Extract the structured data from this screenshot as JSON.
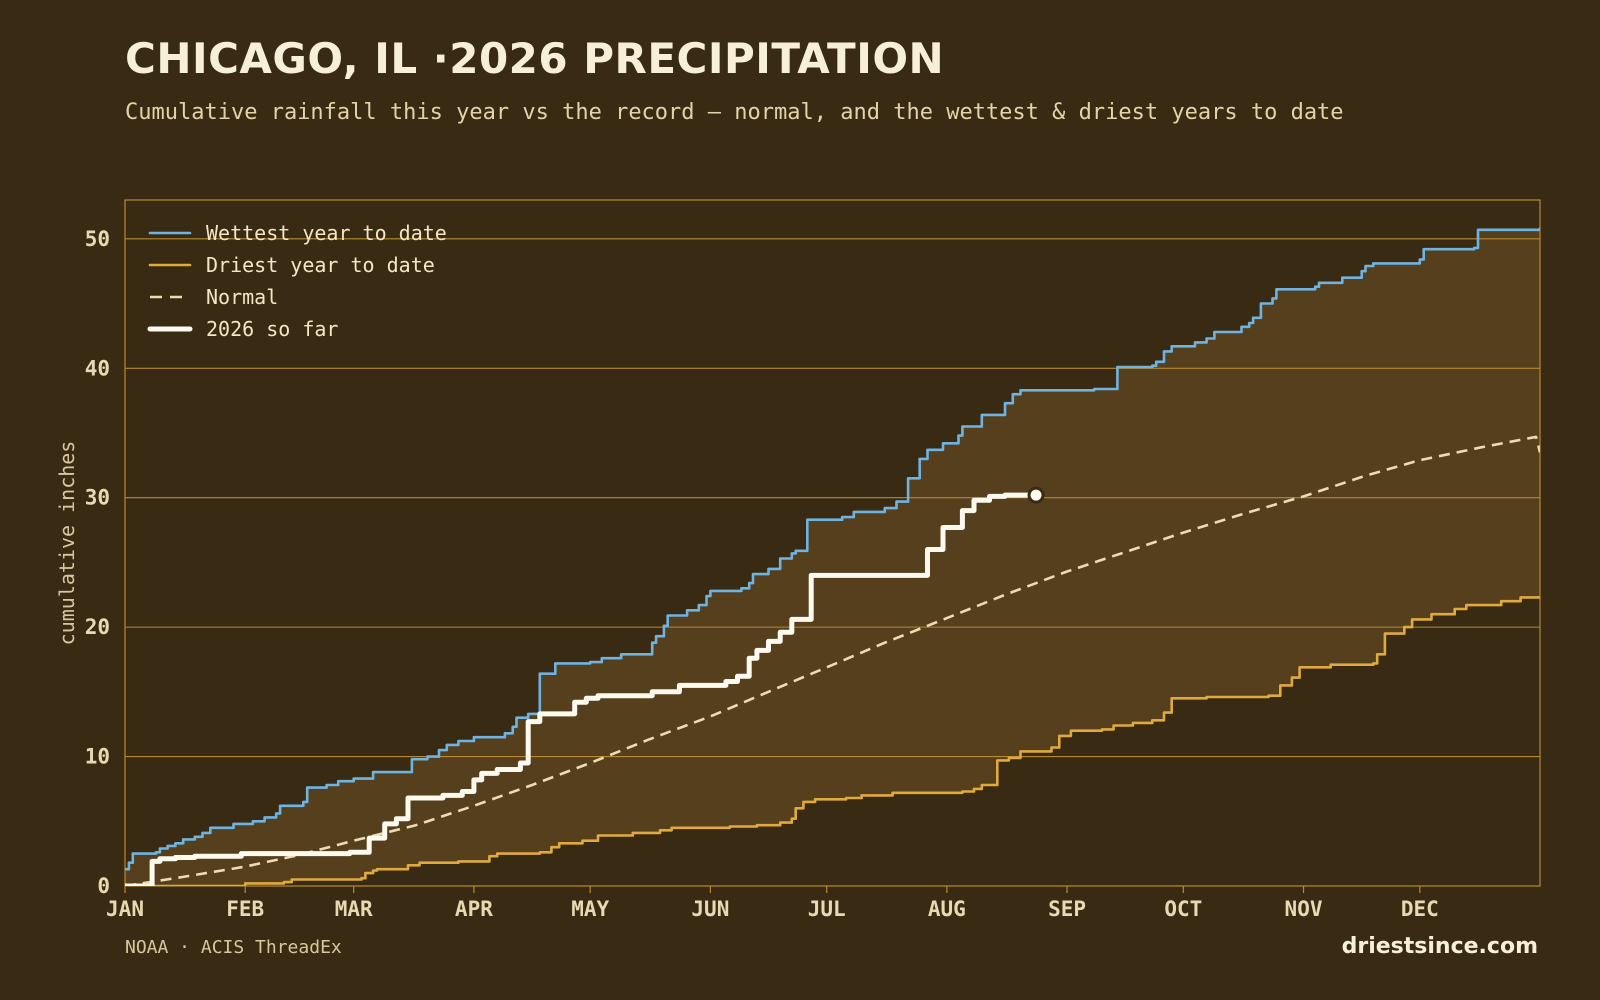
{
  "header": {
    "title": "CHICAGO, IL ·2026 PRECIPITATION",
    "subtitle": "Cumulative rainfall this year vs the record — normal, and the wettest & driest years to date"
  },
  "footer": {
    "source": "NOAA · ACIS ThreadEx",
    "brand": "driestsince.com"
  },
  "colors": {
    "background": "#392b13",
    "band_fill": "#553f1d",
    "grid": "#b8892f",
    "wettest": "#6fb3e0",
    "driest": "#e0aa3e",
    "normal": "#ecdcb4",
    "current": "#fffaf0"
  },
  "chart_data": {
    "type": "line",
    "ylabel": "cumulative inches",
    "ylim": [
      0,
      53
    ],
    "yticks": [
      0,
      10,
      20,
      30,
      40,
      50
    ],
    "xlim": [
      0,
      365
    ],
    "x_unit": "day of year",
    "month_ticks": [
      {
        "label": "JAN",
        "day": 0
      },
      {
        "label": "FEB",
        "day": 31
      },
      {
        "label": "MAR",
        "day": 59
      },
      {
        "label": "APR",
        "day": 90
      },
      {
        "label": "MAY",
        "day": 120
      },
      {
        "label": "JUN",
        "day": 151
      },
      {
        "label": "JUL",
        "day": 181
      },
      {
        "label": "AUG",
        "day": 212
      },
      {
        "label": "SEP",
        "day": 243
      },
      {
        "label": "OCT",
        "day": 273
      },
      {
        "label": "NOV",
        "day": 304
      },
      {
        "label": "DEC",
        "day": 334
      }
    ],
    "grid": true,
    "legend_position": "top-left",
    "series": [
      {
        "name": "Wettest year to date",
        "key": "wettest",
        "style": "step",
        "points": [
          [
            0,
            1.3
          ],
          [
            1,
            1.8
          ],
          [
            2,
            2.5
          ],
          [
            8,
            2.6
          ],
          [
            9,
            2.9
          ],
          [
            11,
            3.1
          ],
          [
            13,
            3.3
          ],
          [
            15,
            3.6
          ],
          [
            18,
            3.8
          ],
          [
            20,
            4.1
          ],
          [
            22,
            4.5
          ],
          [
            28,
            4.8
          ],
          [
            33,
            5.0
          ],
          [
            36,
            5.3
          ],
          [
            39,
            5.6
          ],
          [
            40,
            6.2
          ],
          [
            46,
            6.5
          ],
          [
            47,
            7.6
          ],
          [
            52,
            7.8
          ],
          [
            55,
            8.1
          ],
          [
            59,
            8.3
          ],
          [
            64,
            8.8
          ],
          [
            74,
            9.8
          ],
          [
            78,
            10.0
          ],
          [
            81,
            10.5
          ],
          [
            83,
            10.9
          ],
          [
            86,
            11.2
          ],
          [
            90,
            11.5
          ],
          [
            98,
            11.8
          ],
          [
            100,
            12.3
          ],
          [
            101,
            13.0
          ],
          [
            104,
            13.3
          ],
          [
            107,
            16.4
          ],
          [
            111,
            17.2
          ],
          [
            120,
            17.3
          ],
          [
            123,
            17.6
          ],
          [
            128,
            17.9
          ],
          [
            136,
            18.8
          ],
          [
            137,
            19.3
          ],
          [
            139,
            20.1
          ],
          [
            140,
            20.9
          ],
          [
            145,
            21.3
          ],
          [
            148,
            21.7
          ],
          [
            150,
            22.4
          ],
          [
            151,
            22.8
          ],
          [
            159,
            23.0
          ],
          [
            161,
            23.4
          ],
          [
            162,
            24.1
          ],
          [
            166,
            24.5
          ],
          [
            169,
            25.3
          ],
          [
            172,
            25.7
          ],
          [
            173,
            25.9
          ],
          [
            176,
            28.3
          ],
          [
            185,
            28.5
          ],
          [
            188,
            28.9
          ],
          [
            196,
            29.2
          ],
          [
            199,
            29.7
          ],
          [
            202,
            31.5
          ],
          [
            205,
            33.0
          ],
          [
            207,
            33.7
          ],
          [
            211,
            34.2
          ],
          [
            215,
            34.8
          ],
          [
            216,
            35.5
          ],
          [
            221,
            36.4
          ],
          [
            227,
            37.3
          ],
          [
            229,
            38.0
          ],
          [
            231,
            38.3
          ],
          [
            240,
            38.3
          ],
          [
            250,
            38.4
          ],
          [
            256,
            40.1
          ],
          [
            265,
            40.2
          ],
          [
            266,
            40.5
          ],
          [
            268,
            41.3
          ],
          [
            270,
            41.7
          ],
          [
            276,
            42.0
          ],
          [
            279,
            42.3
          ],
          [
            281,
            42.8
          ],
          [
            288,
            43.2
          ],
          [
            290,
            43.5
          ],
          [
            291,
            43.9
          ],
          [
            293,
            45.0
          ],
          [
            296,
            45.4
          ],
          [
            297,
            46.1
          ],
          [
            307,
            46.3
          ],
          [
            308,
            46.6
          ],
          [
            314,
            47.0
          ],
          [
            319,
            47.5
          ],
          [
            320,
            47.9
          ],
          [
            322,
            48.1
          ],
          [
            334,
            48.4
          ],
          [
            335,
            49.2
          ],
          [
            348,
            49.3
          ],
          [
            349,
            50.7
          ],
          [
            365,
            50.8
          ]
        ]
      },
      {
        "name": "Driest year to date",
        "key": "driest",
        "style": "step",
        "points": [
          [
            0,
            0
          ],
          [
            24,
            0
          ],
          [
            31,
            0.2
          ],
          [
            41,
            0.3
          ],
          [
            43,
            0.5
          ],
          [
            61,
            0.6
          ],
          [
            62,
            1.0
          ],
          [
            64,
            1.2
          ],
          [
            65,
            1.3
          ],
          [
            73,
            1.6
          ],
          [
            76,
            1.8
          ],
          [
            86,
            1.9
          ],
          [
            94,
            2.3
          ],
          [
            96,
            2.5
          ],
          [
            107,
            2.6
          ],
          [
            110,
            3.0
          ],
          [
            112,
            3.3
          ],
          [
            118,
            3.5
          ],
          [
            122,
            3.9
          ],
          [
            131,
            4.1
          ],
          [
            138,
            4.3
          ],
          [
            141,
            4.5
          ],
          [
            156,
            4.6
          ],
          [
            163,
            4.7
          ],
          [
            169,
            4.9
          ],
          [
            172,
            5.2
          ],
          [
            173,
            6.0
          ],
          [
            175,
            6.5
          ],
          [
            178,
            6.7
          ],
          [
            186,
            6.8
          ],
          [
            190,
            7.0
          ],
          [
            198,
            7.2
          ],
          [
            216,
            7.3
          ],
          [
            219,
            7.5
          ],
          [
            221,
            7.8
          ],
          [
            225,
            9.7
          ],
          [
            228,
            9.9
          ],
          [
            231,
            10.4
          ],
          [
            239,
            10.7
          ],
          [
            241,
            11.6
          ],
          [
            244,
            12.0
          ],
          [
            252,
            12.1
          ],
          [
            255,
            12.4
          ],
          [
            260,
            12.6
          ],
          [
            265,
            12.8
          ],
          [
            268,
            13.4
          ],
          [
            270,
            14.5
          ],
          [
            279,
            14.6
          ],
          [
            295,
            14.7
          ],
          [
            298,
            15.5
          ],
          [
            301,
            16.1
          ],
          [
            303,
            16.9
          ],
          [
            311,
            17.1
          ],
          [
            322,
            17.2
          ],
          [
            323,
            17.9
          ],
          [
            325,
            19.5
          ],
          [
            330,
            20.0
          ],
          [
            332,
            20.6
          ],
          [
            337,
            21.0
          ],
          [
            343,
            21.4
          ],
          [
            346,
            21.7
          ],
          [
            355,
            22.0
          ],
          [
            360,
            22.3
          ],
          [
            365,
            22.3
          ]
        ]
      },
      {
        "name": "Normal",
        "key": "normal",
        "style": "smooth",
        "points": [
          [
            0,
            0
          ],
          [
            15,
            0.7
          ],
          [
            31,
            1.5
          ],
          [
            45,
            2.4
          ],
          [
            59,
            3.5
          ],
          [
            75,
            4.7
          ],
          [
            90,
            6.2
          ],
          [
            105,
            7.8
          ],
          [
            120,
            9.5
          ],
          [
            135,
            11.3
          ],
          [
            151,
            13.1
          ],
          [
            166,
            15.0
          ],
          [
            181,
            16.9
          ],
          [
            196,
            18.8
          ],
          [
            212,
            20.7
          ],
          [
            227,
            22.5
          ],
          [
            243,
            24.3
          ],
          [
            258,
            25.8
          ],
          [
            273,
            27.3
          ],
          [
            289,
            28.8
          ],
          [
            304,
            30.1
          ],
          [
            320,
            31.7
          ],
          [
            334,
            32.9
          ],
          [
            350,
            33.9
          ],
          [
            364,
            34.7
          ],
          [
            365,
            33.5
          ]
        ]
      },
      {
        "name": "2026 so far",
        "key": "current",
        "style": "step",
        "points": [
          [
            0,
            0
          ],
          [
            5,
            0
          ],
          [
            7,
            1.9
          ],
          [
            9,
            2.1
          ],
          [
            13,
            2.2
          ],
          [
            18,
            2.3
          ],
          [
            30,
            2.5
          ],
          [
            58,
            2.6
          ],
          [
            63,
            3.7
          ],
          [
            67,
            4.8
          ],
          [
            70,
            5.2
          ],
          [
            73,
            6.8
          ],
          [
            82,
            7.0
          ],
          [
            87,
            7.3
          ],
          [
            90,
            8.2
          ],
          [
            92,
            8.7
          ],
          [
            96,
            9.0
          ],
          [
            102,
            9.5
          ],
          [
            104,
            12.7
          ],
          [
            107,
            13.3
          ],
          [
            116,
            14.2
          ],
          [
            119,
            14.5
          ],
          [
            122,
            14.7
          ],
          [
            136,
            15.0
          ],
          [
            143,
            15.5
          ],
          [
            155,
            15.8
          ],
          [
            158,
            16.2
          ],
          [
            161,
            17.6
          ],
          [
            163,
            18.2
          ],
          [
            166,
            18.9
          ],
          [
            169,
            19.6
          ],
          [
            172,
            20.6
          ],
          [
            177,
            24.0
          ],
          [
            207,
            26.0
          ],
          [
            211,
            27.7
          ],
          [
            216,
            29.0
          ],
          [
            219,
            29.8
          ],
          [
            223,
            30.1
          ],
          [
            227,
            30.2
          ],
          [
            235,
            30.2
          ]
        ]
      }
    ]
  }
}
